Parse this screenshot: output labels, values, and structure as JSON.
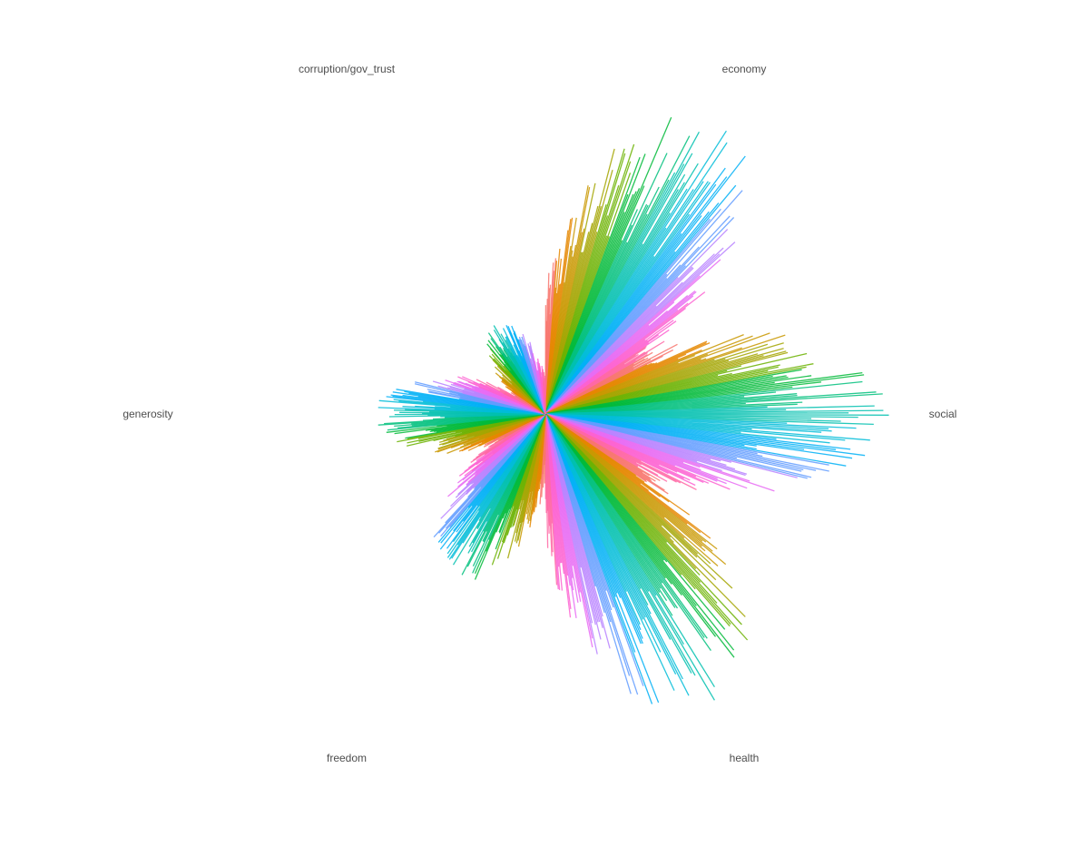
{
  "chart_data": {
    "type": "polar-bar",
    "description_free": true,
    "sectors": [
      "economy",
      "social",
      "health",
      "freedom",
      "generosity",
      "corruption/gov_trust"
    ],
    "value_scale": [
      0,
      1
    ],
    "rays_per_sector": 150,
    "sector_profiles": {
      "economy": {
        "max": 1.0,
        "min": 0.02
      },
      "social": {
        "max": 1.0,
        "min": 0.05
      },
      "health": {
        "max": 1.0,
        "min": 0.05
      },
      "freedom": {
        "max": 0.55,
        "min": 0.02
      },
      "generosity": {
        "max": 0.5,
        "min": 0.0
      },
      "corruption/gov_trust": {
        "max": 0.3,
        "min": 0.0
      }
    },
    "palette": [
      "#F8766D",
      "#E58700",
      "#C99800",
      "#A3A500",
      "#6BB100",
      "#00BA38",
      "#00BF7D",
      "#00C0AF",
      "#00BCD8",
      "#00B0F6",
      "#619CFF",
      "#B983FF",
      "#E76BF3",
      "#FD61D1",
      "#FF67A4"
    ]
  }
}
